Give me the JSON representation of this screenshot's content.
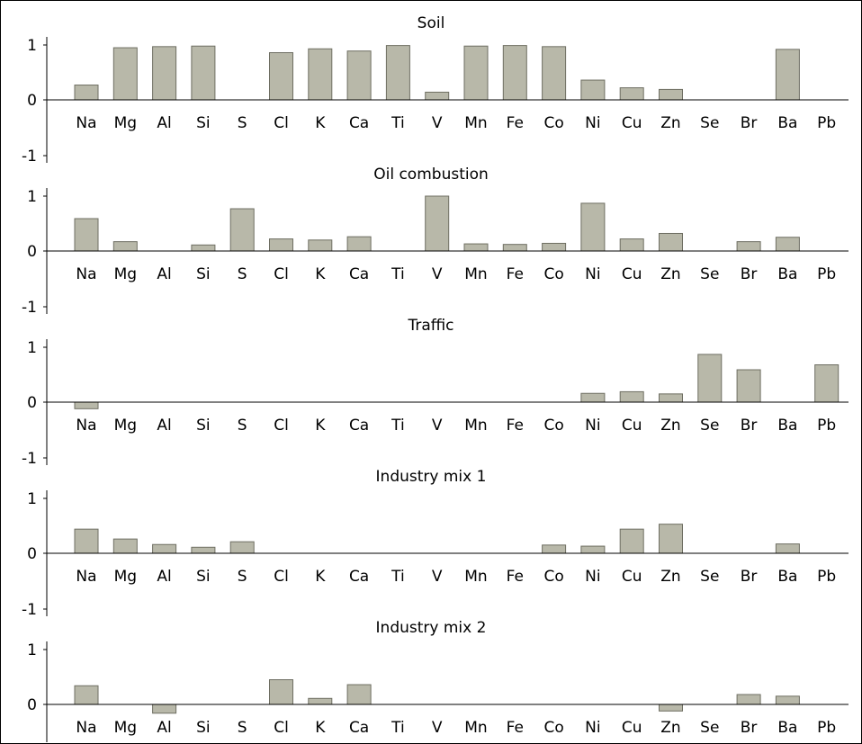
{
  "chart_data": [
    {
      "type": "bar",
      "title": "Soil",
      "categories": [
        "Na",
        "Mg",
        "Al",
        "Si",
        "S",
        "Cl",
        "K",
        "Ca",
        "Ti",
        "V",
        "Mn",
        "Fe",
        "Co",
        "Ni",
        "Cu",
        "Zn",
        "Se",
        "Br",
        "Ba",
        "Pb"
      ],
      "values": [
        0.27,
        0.95,
        0.97,
        0.98,
        0,
        0.86,
        0.93,
        0.89,
        0.99,
        0.14,
        0.98,
        0.99,
        0.97,
        0.36,
        0.22,
        0.19,
        0,
        0,
        0.92,
        0
      ],
      "yticks": [
        "1",
        "0",
        "-1"
      ],
      "ylim": [
        -1,
        1
      ],
      "bar_color": "#b8b8a9"
    },
    {
      "type": "bar",
      "title": "Oil combustion",
      "categories": [
        "Na",
        "Mg",
        "Al",
        "Si",
        "S",
        "Cl",
        "K",
        "Ca",
        "Ti",
        "V",
        "Mn",
        "Fe",
        "Co",
        "Ni",
        "Cu",
        "Zn",
        "Se",
        "Br",
        "Ba",
        "Pb"
      ],
      "values": [
        0.59,
        0.17,
        0,
        0.11,
        0.77,
        0.22,
        0.2,
        0.26,
        0,
        1.0,
        0.13,
        0.12,
        0.14,
        0.87,
        0.22,
        0.32,
        0,
        0.17,
        0.25,
        0
      ],
      "yticks": [
        "1",
        "0",
        "-1"
      ],
      "ylim": [
        -1,
        1
      ],
      "bar_color": "#b8b8a9"
    },
    {
      "type": "bar",
      "title": "Traffic",
      "categories": [
        "Na",
        "Mg",
        "Al",
        "Si",
        "S",
        "Cl",
        "K",
        "Ca",
        "Ti",
        "V",
        "Mn",
        "Fe",
        "Co",
        "Ni",
        "Cu",
        "Zn",
        "Se",
        "Br",
        "Ba",
        "Pb"
      ],
      "values": [
        -0.12,
        0,
        0,
        0,
        0,
        0,
        0,
        0,
        0,
        0,
        0,
        0,
        0,
        0.16,
        0.19,
        0.15,
        0.87,
        0.59,
        0,
        0.68
      ],
      "yticks": [
        "1",
        "0",
        "-1"
      ],
      "ylim": [
        -1,
        1
      ],
      "bar_color": "#b8b8a9"
    },
    {
      "type": "bar",
      "title": "Industry mix 1",
      "categories": [
        "Na",
        "Mg",
        "Al",
        "Si",
        "S",
        "Cl",
        "K",
        "Ca",
        "Ti",
        "V",
        "Mn",
        "Fe",
        "Co",
        "Ni",
        "Cu",
        "Zn",
        "Se",
        "Br",
        "Ba",
        "Pb"
      ],
      "values": [
        0.44,
        0.26,
        0.16,
        0.11,
        0.21,
        0,
        0,
        0,
        0,
        0,
        0,
        0,
        0.15,
        0.13,
        0.44,
        0.53,
        0,
        0,
        0.17,
        0
      ],
      "yticks": [
        "1",
        "0",
        "-1"
      ],
      "ylim": [
        -1,
        1
      ],
      "bar_color": "#b8b8a9"
    },
    {
      "type": "bar",
      "title": "Industry mix 2",
      "categories": [
        "Na",
        "Mg",
        "Al",
        "Si",
        "S",
        "Cl",
        "K",
        "Ca",
        "Ti",
        "V",
        "Mn",
        "Fe",
        "Co",
        "Ni",
        "Cu",
        "Zn",
        "Se",
        "Br",
        "Ba",
        "Pb"
      ],
      "values": [
        0.34,
        0,
        -0.16,
        0,
        0,
        0.45,
        0.11,
        0.36,
        0,
        0,
        0,
        0,
        0,
        0,
        0,
        -0.12,
        0,
        0.18,
        0.15,
        0
      ],
      "yticks": [
        "1",
        "0"
      ],
      "ylim": [
        -1,
        1
      ],
      "bar_color": "#b8b8a9"
    }
  ]
}
